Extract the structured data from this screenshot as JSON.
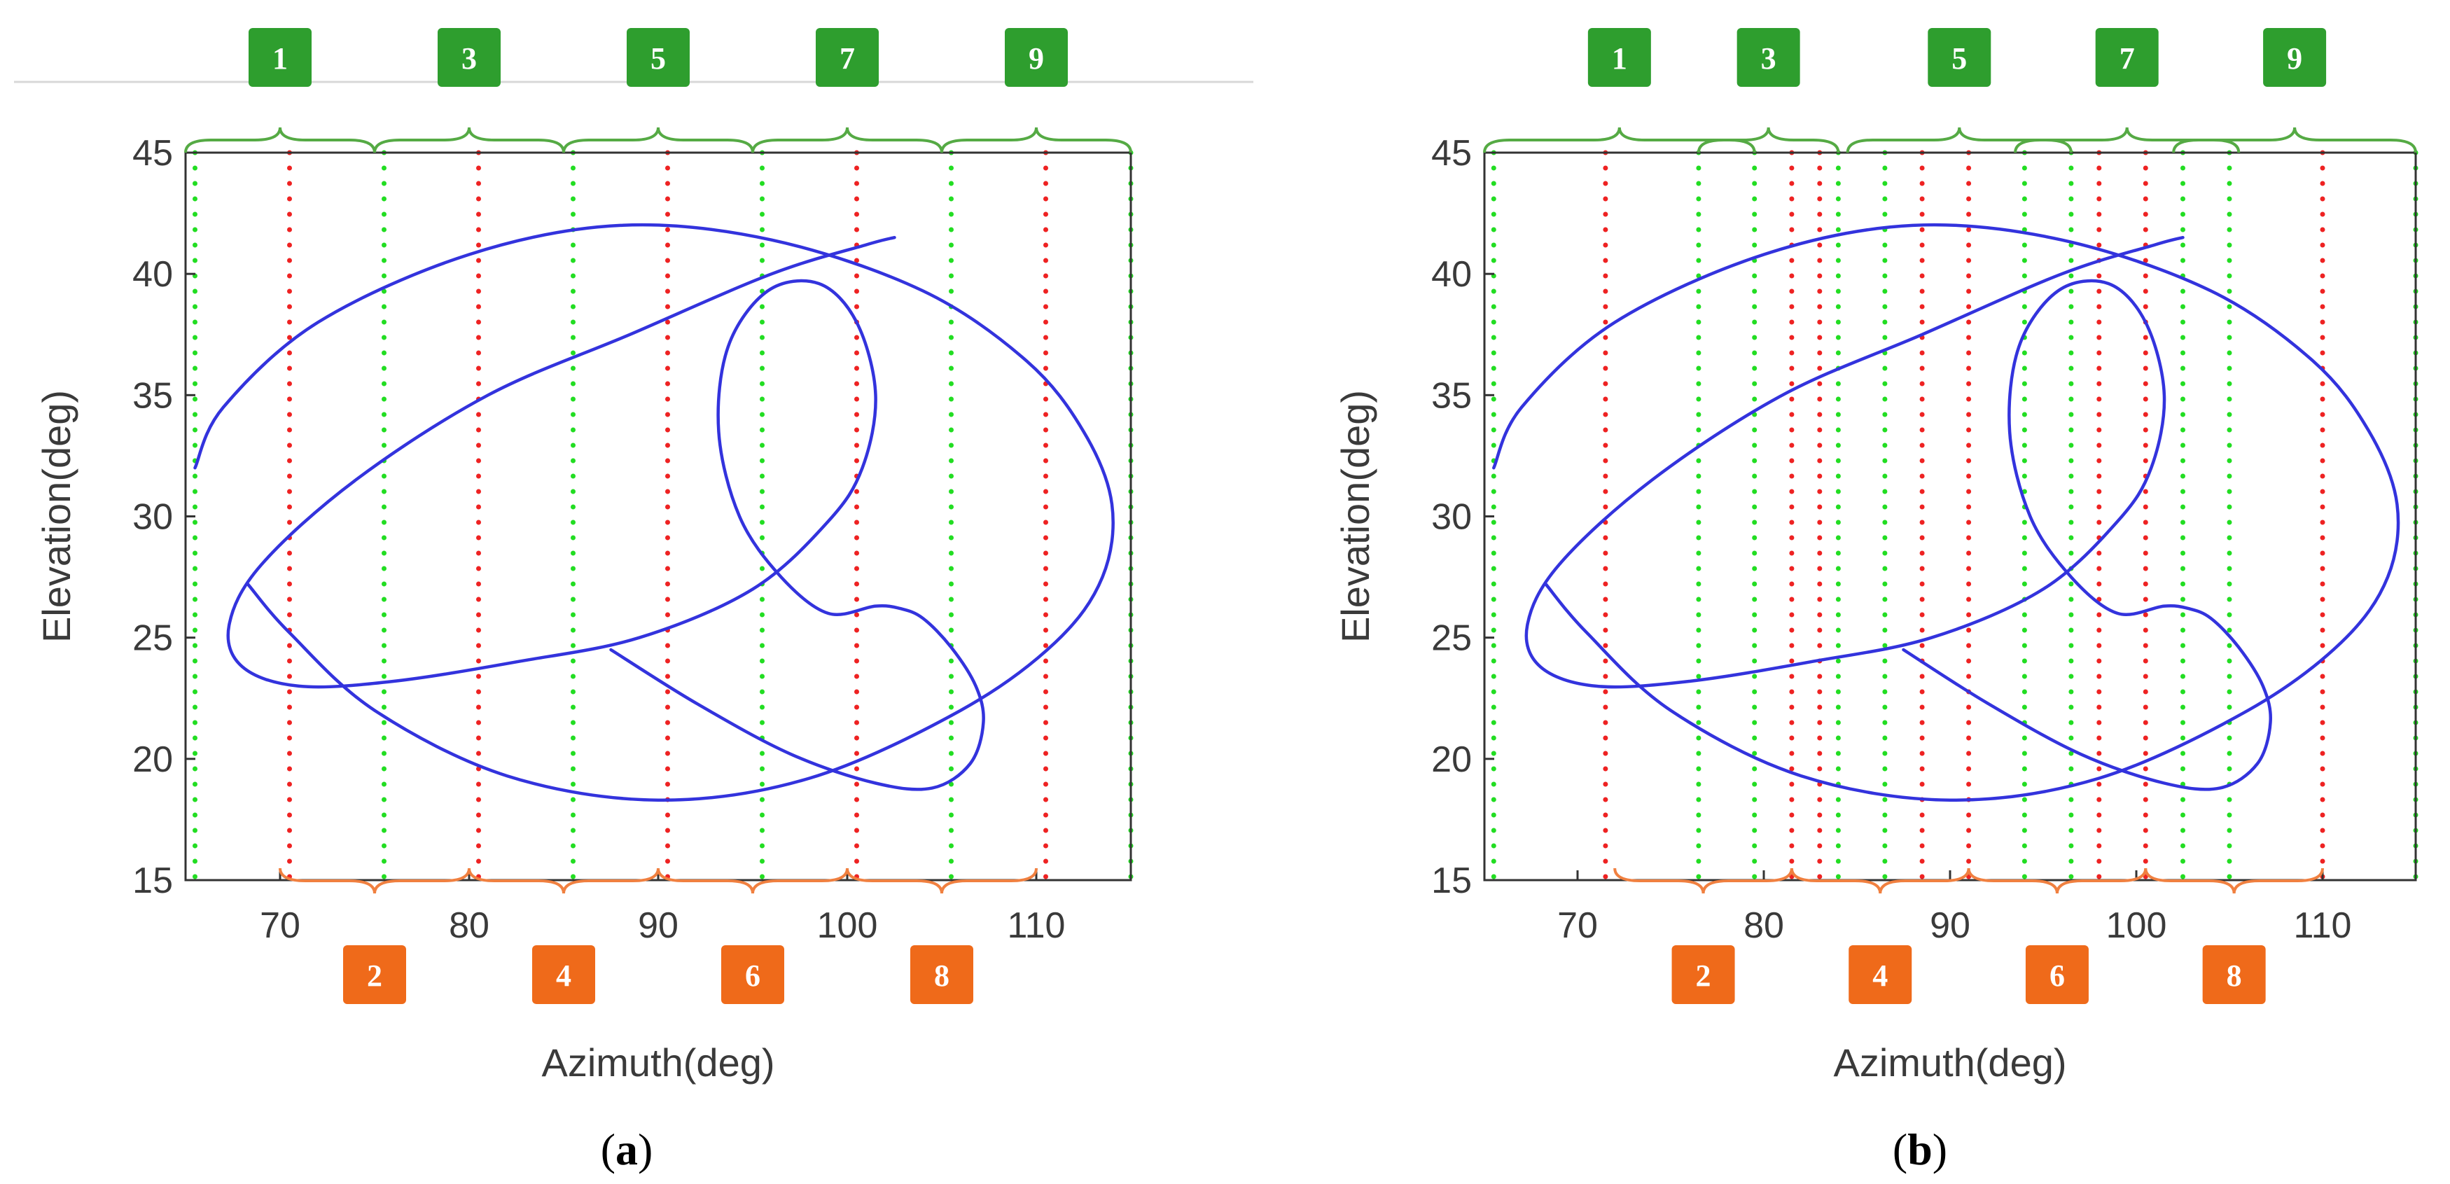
{
  "figure": {
    "panels": [
      {
        "id": "a",
        "label": "(a)",
        "label_letter": "a",
        "label_open": "(",
        "label_close": ")"
      },
      {
        "id": "b",
        "label": "(b)",
        "label_letter": "b",
        "label_open": "(",
        "label_close": ")"
      }
    ]
  },
  "colors": {
    "trajectory": "#3333dd",
    "odd_boundary": "#22dd22",
    "even_center": "#ee2222",
    "odd_box": "#2e9e2e",
    "even_box": "#ef6a1a",
    "odd_brace": "#55aa44",
    "even_brace": "#f08040",
    "axis": "#333333"
  },
  "chart_data": [
    {
      "panel": "a",
      "type": "line",
      "xlabel": "Azimuth(deg)",
      "ylabel": "Elevation(deg)",
      "xlim": [
        65,
        115
      ],
      "ylim": [
        15,
        45
      ],
      "xticks": [
        70,
        80,
        90,
        100,
        110
      ],
      "yticks": [
        15,
        20,
        25,
        30,
        35,
        40,
        45
      ],
      "grid": false,
      "sectors_top": [
        {
          "label": "1",
          "from": 65,
          "to": 75
        },
        {
          "label": "3",
          "from": 75,
          "to": 85
        },
        {
          "label": "5",
          "from": 85,
          "to": 95
        },
        {
          "label": "7",
          "from": 95,
          "to": 105
        },
        {
          "label": "9",
          "from": 105,
          "to": 115
        }
      ],
      "sectors_bottom": [
        {
          "label": "2",
          "from": 70,
          "to": 80
        },
        {
          "label": "4",
          "from": 80,
          "to": 90
        },
        {
          "label": "6",
          "from": 90,
          "to": 100
        },
        {
          "label": "8",
          "from": 100,
          "to": 110
        }
      ],
      "green_lines": [
        65.5,
        75.5,
        85.5,
        95.5,
        105.5,
        115
      ],
      "red_lines": [
        70.5,
        80.5,
        90.5,
        100.5,
        110.5
      ],
      "series": [
        {
          "x": [
            87.5,
            92,
            97,
            101.5,
            104.5,
            106.5,
            107.2,
            106.8,
            105.5,
            104,
            102.8,
            101.5,
            99,
            96.5,
            94.3,
            93.2,
            93.7,
            95.8,
            98.5,
            100.5,
            101.5,
            100.8,
            99,
            95,
            89,
            82.5,
            76,
            71,
            68,
            67.3,
            69,
            74,
            81,
            88.5,
            96,
            101,
            102.5
          ],
          "y": [
            24.5,
            22.3,
            20.2,
            19,
            18.8,
            19.8,
            21.5,
            23,
            24.6,
            25.8,
            26.2,
            26.3,
            26,
            27.5,
            30,
            33.5,
            37,
            39.3,
            39.6,
            38,
            35,
            32,
            29.8,
            27,
            25,
            24,
            23.2,
            23,
            23.8,
            25.5,
            28,
            31.5,
            35,
            37.5,
            40,
            41.2,
            41.5
          ]
        },
        {
          "x": [
            65.5,
            67,
            72,
            80,
            88,
            96,
            104,
            109.5,
            112.5,
            114,
            113.5,
            111,
            106,
            98,
            90,
            82,
            75,
            70.5,
            68.3
          ],
          "y": [
            32,
            34.5,
            38,
            40.8,
            42,
            41.4,
            39.3,
            36.4,
            33.5,
            30.5,
            27.5,
            24.8,
            22,
            19.2,
            18.3,
            19.3,
            22,
            25.2,
            27.2
          ]
        }
      ]
    },
    {
      "panel": "b",
      "type": "line",
      "xlabel": "Azimuth(deg)",
      "ylabel": "Elevation(deg)",
      "xlim": [
        65,
        115
      ],
      "ylim": [
        15,
        45
      ],
      "xticks": [
        70,
        80,
        90,
        100,
        110
      ],
      "yticks": [
        15,
        20,
        25,
        30,
        35,
        40,
        45
      ],
      "grid": false,
      "sectors_top": [
        {
          "label": "1",
          "from": 65,
          "to": 79.5
        },
        {
          "label": "3",
          "from": 76.5,
          "to": 84
        },
        {
          "label": "5",
          "from": 84.5,
          "to": 96.5
        },
        {
          "label": "7",
          "from": 93.5,
          "to": 105.5
        },
        {
          "label": "9",
          "from": 102,
          "to": 115
        }
      ],
      "sectors_bottom": [
        {
          "label": "2",
          "from": 72,
          "to": 81.5
        },
        {
          "label": "4",
          "from": 81.5,
          "to": 91
        },
        {
          "label": "6",
          "from": 91,
          "to": 100.5
        },
        {
          "label": "8",
          "from": 100.5,
          "to": 110
        }
      ],
      "green_lines": [
        65.5,
        76.5,
        79.5,
        84,
        86.5,
        94,
        96.5,
        102.5,
        105,
        115
      ],
      "red_lines": [
        71.5,
        81.5,
        83,
        88.5,
        91,
        98,
        100.5,
        110
      ],
      "series": [
        {
          "x": [
            87.5,
            92,
            97,
            101.5,
            104.5,
            106.5,
            107.2,
            106.8,
            105.5,
            104,
            102.8,
            101.5,
            99,
            96.5,
            94.3,
            93.2,
            93.7,
            95.8,
            98.5,
            100.5,
            101.5,
            100.8,
            99,
            95,
            89,
            82.5,
            76,
            71,
            68,
            67.3,
            69,
            74,
            81,
            88.5,
            96,
            101,
            102.5
          ],
          "y": [
            24.5,
            22.3,
            20.2,
            19,
            18.8,
            19.8,
            21.5,
            23,
            24.6,
            25.8,
            26.2,
            26.3,
            26,
            27.5,
            30,
            33.5,
            37,
            39.3,
            39.6,
            38,
            35,
            32,
            29.8,
            27,
            25,
            24,
            23.2,
            23,
            23.8,
            25.5,
            28,
            31.5,
            35,
            37.5,
            40,
            41.2,
            41.5
          ]
        },
        {
          "x": [
            65.5,
            67,
            72,
            80,
            88,
            96,
            104,
            109.5,
            112.5,
            114,
            113.5,
            111,
            106,
            98,
            90,
            82,
            75,
            70.5,
            68.3
          ],
          "y": [
            32,
            34.5,
            38,
            40.8,
            42,
            41.4,
            39.3,
            36.4,
            33.5,
            30.5,
            27.5,
            24.8,
            22,
            19.2,
            18.3,
            19.3,
            22,
            25.2,
            27.2
          ]
        }
      ]
    }
  ]
}
